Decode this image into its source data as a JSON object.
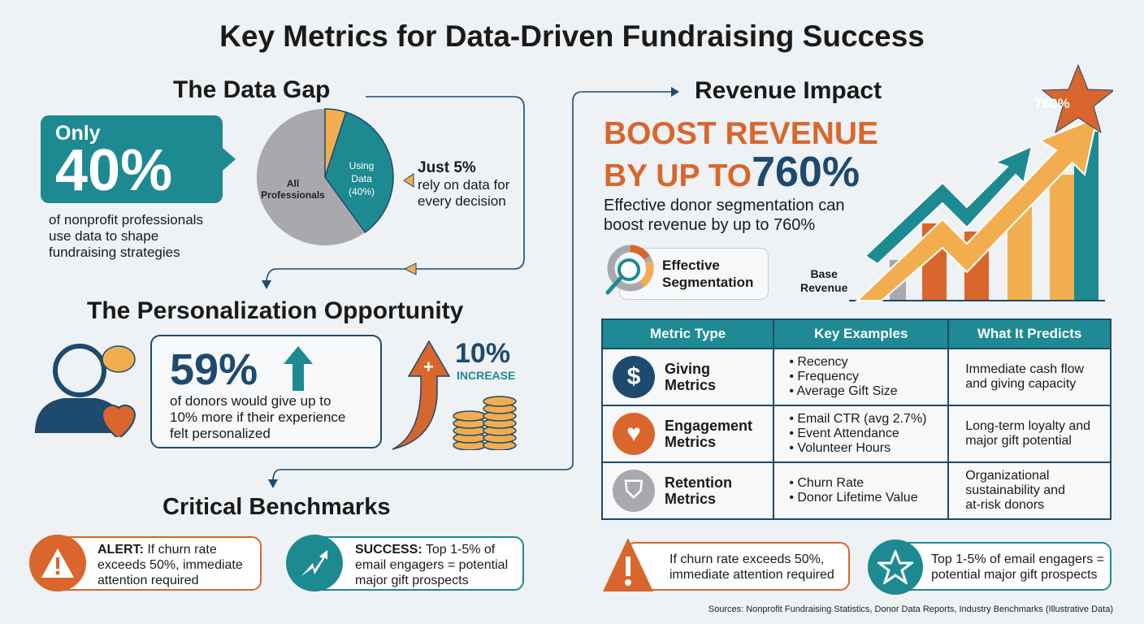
{
  "title": "Key Metrics for Data-Driven Fundraising Success",
  "data_gap": {
    "heading": "The Data Gap",
    "only": "Only",
    "big": "40%",
    "desc": [
      "of nonprofit professionals",
      "use data to shape",
      "fundraising strategies"
    ],
    "pie": {
      "label_all": "All Professionals",
      "label_using": [
        "Using",
        "Data",
        "(40%)"
      ],
      "slices": [
        {
          "label": "Just 5%",
          "value": 5,
          "color": "#f2ad4f"
        },
        {
          "label": "Using Data (40%)",
          "value": 35,
          "color": "#1d8a92"
        },
        {
          "label": "All Professionals",
          "value": 60,
          "color": "#a9a9ad"
        }
      ]
    },
    "just": "Just 5%",
    "just_desc": [
      "rely on data for",
      "every decision"
    ]
  },
  "personalization": {
    "heading": "The Personalization Opportunity",
    "big": "59%",
    "desc": [
      "of donors would give up to",
      "10% more if their experience",
      "felt personalized"
    ],
    "increase_value": "10%",
    "increase_label": "INCREASE",
    "plus": "+"
  },
  "benchmarks": {
    "heading": "Critical Benchmarks",
    "alert": {
      "label": "ALERT:",
      "text": [
        "If churn rate",
        "exceeds 50%, immediate",
        "attention required"
      ]
    },
    "success": {
      "label": "SUCCESS:",
      "text": [
        "Top 1-5% of",
        "email engagers = potential",
        "major gift prospects"
      ]
    }
  },
  "revenue": {
    "heading": "Revenue Impact",
    "boost1": "BOOST REVENUE",
    "boost2": "BY UP TO",
    "boost_value": "760%",
    "desc": [
      "Effective donor segmentation can",
      "boost revenue by up to 760%"
    ],
    "seg_label": [
      "Effective",
      "Segmentation"
    ],
    "base_label": [
      "Base",
      "Revenue"
    ],
    "star_label": "760%"
  },
  "table": {
    "headers": [
      "Metric Type",
      "Key Examples",
      "What It Predicts"
    ],
    "rows": [
      {
        "icon": "$",
        "type": [
          "Giving",
          "Metrics"
        ],
        "examples": [
          "Recency",
          "Frequency",
          "Average Gift Size"
        ],
        "predicts": [
          "Immediate cash flow",
          "and giving capacity"
        ],
        "color": "#1d4a6e"
      },
      {
        "icon": "♥",
        "type": [
          "Engagement",
          "Metrics"
        ],
        "examples": [
          "Email CTR (avg 2.7%)",
          "Event Attendance",
          "Volunteer Hours"
        ],
        "predicts": [
          "Long-term loyalty and",
          "major gift potential"
        ],
        "color": "#d9662c"
      },
      {
        "icon": "⛉",
        "type": [
          "Retention",
          "Metrics"
        ],
        "examples": [
          "Churn Rate",
          "Donor Lifetime Value"
        ],
        "predicts": [
          "Organizational",
          "sustainability and",
          "at-risk donors"
        ],
        "color": "#a9a9ad"
      }
    ]
  },
  "bottom": {
    "alert": [
      "If churn rate exceeds 50%,",
      "immediate attention required"
    ],
    "star": [
      "Top 1-5% of email engagers =",
      "potential major gift prospects"
    ]
  },
  "sources": "Sources: Nonprofit Fundraising Statistics, Donor Data Reports, Industry Benchmarks (Illustrative Data)"
}
